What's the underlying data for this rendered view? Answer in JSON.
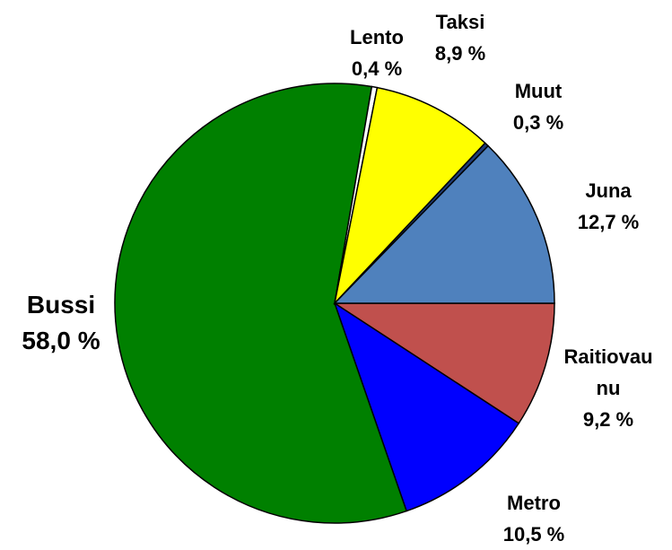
{
  "chart_data": {
    "type": "pie",
    "categories": [
      "Raitiovaunu",
      "Metro",
      "Bussi",
      "Lento",
      "Taksi",
      "Muut",
      "Juna"
    ],
    "values": [
      9.2,
      10.5,
      58.0,
      0.4,
      8.9,
      0.3,
      12.7
    ],
    "value_labels": [
      "9,2 %",
      "10,5 %",
      "58,0 %",
      "0,4 %",
      "8,9 %",
      "0,3 %",
      "12,7 %"
    ],
    "colors": [
      "#c0504d",
      "#0000ff",
      "#008000",
      "#ffffff",
      "#ffff00",
      "#1f3d7a",
      "#4f81bd"
    ]
  }
}
